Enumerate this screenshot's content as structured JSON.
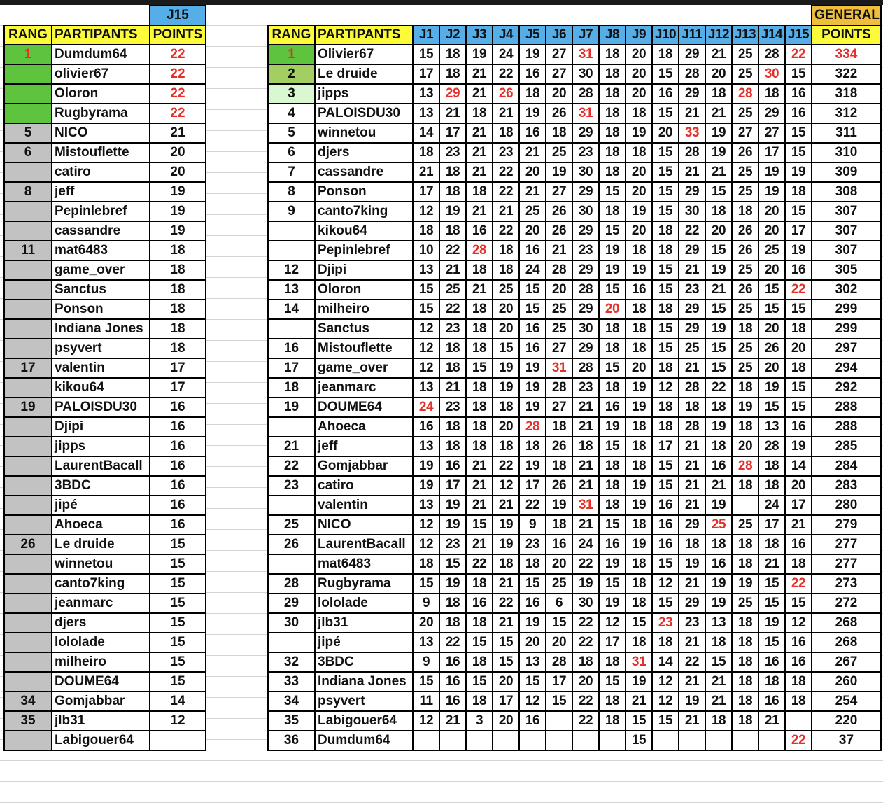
{
  "left_table": {
    "top_header": "J15",
    "headers": [
      "RANG",
      "PARTIPANTS",
      "POINTS"
    ],
    "rows": [
      {
        "rank": "1",
        "name": "Dumdum64",
        "points": "22",
        "rank_color": "green",
        "points_red": true
      },
      {
        "rank": "",
        "name": "olivier67",
        "points": "22",
        "rank_color": "green",
        "points_red": true
      },
      {
        "rank": "",
        "name": "Oloron",
        "points": "22",
        "rank_color": "green",
        "points_red": true
      },
      {
        "rank": "",
        "name": "Rugbyrama",
        "points": "22",
        "rank_color": "green",
        "points_red": true
      },
      {
        "rank": "5",
        "name": "NICO",
        "points": "21"
      },
      {
        "rank": "6",
        "name": "Mistouflette",
        "points": "20"
      },
      {
        "rank": "",
        "name": "catiro",
        "points": "20"
      },
      {
        "rank": "8",
        "name": "jeff",
        "points": "19"
      },
      {
        "rank": "",
        "name": "Pepinlebref",
        "points": "19"
      },
      {
        "rank": "",
        "name": "cassandre",
        "points": "19"
      },
      {
        "rank": "11",
        "name": "mat6483",
        "points": "18"
      },
      {
        "rank": "",
        "name": "game_over",
        "points": "18"
      },
      {
        "rank": "",
        "name": "Sanctus",
        "points": "18"
      },
      {
        "rank": "",
        "name": "Ponson",
        "points": "18"
      },
      {
        "rank": "",
        "name": "Indiana Jones",
        "points": "18"
      },
      {
        "rank": "",
        "name": "psyvert",
        "points": "18"
      },
      {
        "rank": "17",
        "name": "valentin",
        "points": "17"
      },
      {
        "rank": "",
        "name": "kikou64",
        "points": "17"
      },
      {
        "rank": "19",
        "name": "PALOISDU30",
        "points": "16"
      },
      {
        "rank": "",
        "name": "Djipi",
        "points": "16"
      },
      {
        "rank": "",
        "name": "jipps",
        "points": "16"
      },
      {
        "rank": "",
        "name": "LaurentBacall",
        "points": "16"
      },
      {
        "rank": "",
        "name": "3BDC",
        "points": "16"
      },
      {
        "rank": "",
        "name": "jipé",
        "points": "16"
      },
      {
        "rank": "",
        "name": "Ahoeca",
        "points": "16"
      },
      {
        "rank": "26",
        "name": "Le druide",
        "points": "15"
      },
      {
        "rank": "",
        "name": "winnetou",
        "points": "15"
      },
      {
        "rank": "",
        "name": "canto7king",
        "points": "15"
      },
      {
        "rank": "",
        "name": "jeanmarc",
        "points": "15"
      },
      {
        "rank": "",
        "name": "djers",
        "points": "15"
      },
      {
        "rank": "",
        "name": "lololade",
        "points": "15"
      },
      {
        "rank": "",
        "name": "milheiro",
        "points": "15"
      },
      {
        "rank": "",
        "name": "DOUME64",
        "points": "15"
      },
      {
        "rank": "34",
        "name": "Gomjabbar",
        "points": "14"
      },
      {
        "rank": "35",
        "name": "jlb31",
        "points": "12"
      },
      {
        "rank": "",
        "name": "Labigouer64",
        "points": ""
      }
    ]
  },
  "right_table": {
    "top_header": "GENERAL",
    "headers": [
      "RANG",
      "PARTIPANTS",
      "J1",
      "J2",
      "J3",
      "J4",
      "J5",
      "J6",
      "J7",
      "J8",
      "J9",
      "J10",
      "J11",
      "J12",
      "J13",
      "J14",
      "J15",
      "POINTS"
    ],
    "rows": [
      {
        "rank": "1",
        "name": "Olivier67",
        "scores": [
          "15",
          "18",
          "19",
          "24",
          "19",
          "27",
          "31",
          "18",
          "20",
          "18",
          "29",
          "21",
          "25",
          "28",
          "22"
        ],
        "total": "334",
        "red": [
          6,
          14
        ],
        "total_red": true,
        "rank_color": "gold"
      },
      {
        "rank": "2",
        "name": "Le druide",
        "scores": [
          "17",
          "18",
          "21",
          "22",
          "16",
          "27",
          "30",
          "18",
          "20",
          "15",
          "28",
          "20",
          "25",
          "30",
          "15"
        ],
        "total": "322",
        "red": [
          13
        ],
        "rank_color": "silver"
      },
      {
        "rank": "3",
        "name": "jipps",
        "scores": [
          "13",
          "29",
          "21",
          "26",
          "18",
          "20",
          "28",
          "18",
          "20",
          "16",
          "29",
          "18",
          "28",
          "18",
          "16"
        ],
        "total": "318",
        "red": [
          1,
          3,
          12
        ],
        "rank_color": "bronze"
      },
      {
        "rank": "4",
        "name": "PALOISDU30",
        "scores": [
          "13",
          "21",
          "18",
          "21",
          "19",
          "26",
          "31",
          "18",
          "18",
          "15",
          "21",
          "21",
          "25",
          "29",
          "16"
        ],
        "total": "312",
        "red": [
          6
        ]
      },
      {
        "rank": "5",
        "name": "winnetou",
        "scores": [
          "14",
          "17",
          "21",
          "18",
          "16",
          "18",
          "29",
          "18",
          "19",
          "20",
          "33",
          "19",
          "27",
          "27",
          "15"
        ],
        "total": "311",
        "red": [
          10
        ]
      },
      {
        "rank": "6",
        "name": "djers",
        "scores": [
          "18",
          "23",
          "21",
          "23",
          "21",
          "25",
          "23",
          "18",
          "18",
          "15",
          "28",
          "19",
          "26",
          "17",
          "15"
        ],
        "total": "310",
        "red": []
      },
      {
        "rank": "7",
        "name": "cassandre",
        "scores": [
          "21",
          "18",
          "21",
          "22",
          "20",
          "19",
          "30",
          "18",
          "20",
          "15",
          "21",
          "21",
          "25",
          "19",
          "19"
        ],
        "total": "309",
        "red": []
      },
      {
        "rank": "8",
        "name": "Ponson",
        "scores": [
          "17",
          "18",
          "18",
          "22",
          "21",
          "27",
          "29",
          "15",
          "20",
          "15",
          "29",
          "15",
          "25",
          "19",
          "18"
        ],
        "total": "308",
        "red": []
      },
      {
        "rank": "9",
        "name": "canto7king",
        "scores": [
          "12",
          "19",
          "21",
          "21",
          "25",
          "26",
          "30",
          "18",
          "19",
          "15",
          "30",
          "18",
          "18",
          "20",
          "15"
        ],
        "total": "307",
        "red": []
      },
      {
        "rank": "",
        "name": "kikou64",
        "scores": [
          "18",
          "18",
          "16",
          "22",
          "20",
          "26",
          "29",
          "15",
          "20",
          "18",
          "22",
          "20",
          "26",
          "20",
          "17"
        ],
        "total": "307",
        "red": []
      },
      {
        "rank": "",
        "name": "Pepinlebref",
        "scores": [
          "10",
          "22",
          "28",
          "18",
          "16",
          "21",
          "23",
          "19",
          "18",
          "18",
          "29",
          "15",
          "26",
          "25",
          "19"
        ],
        "total": "307",
        "red": [
          2
        ]
      },
      {
        "rank": "12",
        "name": "Djipi",
        "scores": [
          "13",
          "21",
          "18",
          "18",
          "24",
          "28",
          "29",
          "19",
          "19",
          "15",
          "21",
          "19",
          "25",
          "20",
          "16"
        ],
        "total": "305",
        "red": []
      },
      {
        "rank": "13",
        "name": "Oloron",
        "scores": [
          "15",
          "25",
          "21",
          "25",
          "15",
          "20",
          "28",
          "15",
          "16",
          "15",
          "23",
          "21",
          "26",
          "15",
          "22"
        ],
        "total": "302",
        "red": [
          14
        ]
      },
      {
        "rank": "14",
        "name": "milheiro",
        "scores": [
          "15",
          "22",
          "18",
          "20",
          "15",
          "25",
          "29",
          "20",
          "18",
          "18",
          "29",
          "15",
          "25",
          "15",
          "15"
        ],
        "total": "299",
        "red": [
          7
        ]
      },
      {
        "rank": "",
        "name": "Sanctus",
        "scores": [
          "12",
          "23",
          "18",
          "20",
          "16",
          "25",
          "30",
          "18",
          "18",
          "15",
          "29",
          "19",
          "18",
          "20",
          "18"
        ],
        "total": "299",
        "red": []
      },
      {
        "rank": "16",
        "name": "Mistouflette",
        "scores": [
          "12",
          "18",
          "18",
          "15",
          "16",
          "27",
          "29",
          "18",
          "18",
          "15",
          "25",
          "15",
          "25",
          "26",
          "20"
        ],
        "total": "297",
        "red": []
      },
      {
        "rank": "17",
        "name": "game_over",
        "scores": [
          "12",
          "18",
          "15",
          "19",
          "19",
          "31",
          "28",
          "15",
          "20",
          "18",
          "21",
          "15",
          "25",
          "20",
          "18"
        ],
        "total": "294",
        "red": [
          5
        ]
      },
      {
        "rank": "18",
        "name": "jeanmarc",
        "scores": [
          "13",
          "21",
          "18",
          "19",
          "19",
          "28",
          "23",
          "18",
          "19",
          "12",
          "28",
          "22",
          "18",
          "19",
          "15"
        ],
        "total": "292",
        "red": []
      },
      {
        "rank": "19",
        "name": "DOUME64",
        "scores": [
          "24",
          "23",
          "18",
          "18",
          "19",
          "27",
          "21",
          "16",
          "19",
          "18",
          "18",
          "18",
          "19",
          "15",
          "15"
        ],
        "total": "288",
        "red": [
          0
        ]
      },
      {
        "rank": "",
        "name": "Ahoeca",
        "scores": [
          "16",
          "18",
          "18",
          "20",
          "28",
          "18",
          "21",
          "19",
          "18",
          "18",
          "28",
          "19",
          "18",
          "13",
          "16"
        ],
        "total": "288",
        "red": [
          4
        ]
      },
      {
        "rank": "21",
        "name": "jeff",
        "scores": [
          "13",
          "18",
          "18",
          "18",
          "18",
          "26",
          "18",
          "15",
          "18",
          "17",
          "21",
          "18",
          "20",
          "28",
          "19"
        ],
        "total": "285",
        "red": []
      },
      {
        "rank": "22",
        "name": "Gomjabbar",
        "scores": [
          "19",
          "16",
          "21",
          "22",
          "19",
          "18",
          "21",
          "18",
          "18",
          "15",
          "21",
          "16",
          "28",
          "18",
          "14"
        ],
        "total": "284",
        "red": [
          12
        ]
      },
      {
        "rank": "23",
        "name": "catiro",
        "scores": [
          "19",
          "17",
          "21",
          "12",
          "17",
          "26",
          "21",
          "18",
          "19",
          "15",
          "21",
          "21",
          "18",
          "18",
          "20"
        ],
        "total": "283",
        "red": []
      },
      {
        "rank": "",
        "name": "valentin",
        "scores": [
          "13",
          "19",
          "21",
          "21",
          "22",
          "19",
          "31",
          "18",
          "19",
          "16",
          "21",
          "19",
          "",
          "24",
          "17"
        ],
        "total": "280",
        "red": [
          6
        ]
      },
      {
        "rank": "25",
        "name": "NICO",
        "scores": [
          "12",
          "19",
          "15",
          "19",
          "9",
          "18",
          "21",
          "15",
          "18",
          "16",
          "29",
          "25",
          "25",
          "17",
          "21"
        ],
        "total": "279",
        "red": [
          11
        ]
      },
      {
        "rank": "26",
        "name": "LaurentBacall",
        "scores": [
          "12",
          "23",
          "21",
          "19",
          "23",
          "16",
          "24",
          "16",
          "19",
          "16",
          "18",
          "18",
          "18",
          "18",
          "16"
        ],
        "total": "277",
        "red": []
      },
      {
        "rank": "",
        "name": "mat6483",
        "scores": [
          "18",
          "15",
          "22",
          "18",
          "18",
          "20",
          "22",
          "19",
          "18",
          "15",
          "19",
          "16",
          "18",
          "21",
          "18"
        ],
        "total": "277",
        "red": []
      },
      {
        "rank": "28",
        "name": "Rugbyrama",
        "scores": [
          "15",
          "19",
          "18",
          "21",
          "15",
          "25",
          "19",
          "15",
          "18",
          "12",
          "21",
          "19",
          "19",
          "15",
          "22"
        ],
        "total": "273",
        "red": [
          14
        ]
      },
      {
        "rank": "29",
        "name": "lololade",
        "scores": [
          "9",
          "18",
          "16",
          "22",
          "16",
          "6",
          "30",
          "19",
          "18",
          "15",
          "29",
          "19",
          "25",
          "15",
          "15"
        ],
        "total": "272",
        "red": []
      },
      {
        "rank": "30",
        "name": "jlb31",
        "scores": [
          "20",
          "18",
          "18",
          "21",
          "19",
          "15",
          "22",
          "12",
          "15",
          "23",
          "23",
          "13",
          "18",
          "19",
          "12"
        ],
        "total": "268",
        "red": [
          9
        ]
      },
      {
        "rank": "",
        "name": "jipé",
        "scores": [
          "13",
          "22",
          "15",
          "15",
          "20",
          "20",
          "22",
          "17",
          "18",
          "18",
          "21",
          "18",
          "18",
          "15",
          "16"
        ],
        "total": "268",
        "red": []
      },
      {
        "rank": "32",
        "name": "3BDC",
        "scores": [
          "9",
          "16",
          "18",
          "15",
          "13",
          "28",
          "18",
          "18",
          "31",
          "14",
          "22",
          "15",
          "18",
          "16",
          "16"
        ],
        "total": "267",
        "red": [
          8
        ]
      },
      {
        "rank": "33",
        "name": "Indiana Jones",
        "scores": [
          "15",
          "16",
          "15",
          "20",
          "15",
          "17",
          "20",
          "15",
          "19",
          "12",
          "21",
          "21",
          "18",
          "18",
          "18"
        ],
        "total": "260",
        "red": []
      },
      {
        "rank": "34",
        "name": "psyvert",
        "scores": [
          "11",
          "16",
          "18",
          "17",
          "12",
          "15",
          "22",
          "18",
          "21",
          "12",
          "19",
          "21",
          "18",
          "16",
          "18"
        ],
        "total": "254",
        "red": []
      },
      {
        "rank": "35",
        "name": "Labigouer64",
        "scores": [
          "12",
          "21",
          "3",
          "20",
          "16",
          "",
          "22",
          "18",
          "15",
          "15",
          "21",
          "18",
          "18",
          "21",
          ""
        ],
        "total": "220",
        "red": []
      },
      {
        "rank": "36",
        "name": "Dumdum64",
        "scores": [
          "",
          "",
          "",
          "",
          "",
          "",
          "",
          "",
          "15",
          "",
          "",
          "",
          "",
          "",
          "22"
        ],
        "total": "37",
        "red": [
          14
        ]
      }
    ]
  },
  "colors": {
    "header_yellow": "#fbfb3a",
    "header_blue": "#55aee8",
    "general_orange": "#efbe3f",
    "highlight_red": "#e3302a",
    "rank_gold": "#5ec43e",
    "rank_silver": "#a3cf62",
    "rank_bronze": "#d9f7d0",
    "rank_grey": "#c2c2c2"
  }
}
